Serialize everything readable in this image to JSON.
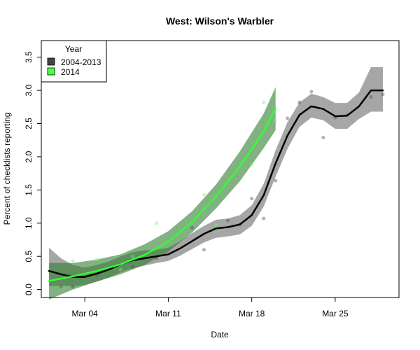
{
  "chart_data": {
    "type": "line",
    "title": "West: Wilson's Warbler",
    "xlabel": "Date",
    "ylabel": "Percent of checklists reporting",
    "x_ticks": [
      "Mar 04",
      "Mar 11",
      "Mar 18",
      "Mar 25"
    ],
    "y_ticks": [
      "0.0",
      "0.5",
      "1.0",
      "1.5",
      "2.0",
      "2.5",
      "3.0",
      "3.5"
    ],
    "xlim": [
      "Feb 28",
      "Mar 30"
    ],
    "ylim": [
      -0.12,
      3.75
    ],
    "legend": {
      "title": "Year",
      "position": "top-left",
      "entries": [
        {
          "label": "2004-2013",
          "color": "#444444"
        },
        {
          "label": "2014",
          "color": "#4CFF4C"
        }
      ]
    },
    "series": [
      {
        "name": "2004-2013",
        "color": "#000000",
        "band_color": "#000000",
        "x": [
          "Mar 01",
          "Mar 02",
          "Mar 03",
          "Mar 04",
          "Mar 05",
          "Mar 06",
          "Mar 07",
          "Mar 08",
          "Mar 09",
          "Mar 10",
          "Mar 11",
          "Mar 12",
          "Mar 13",
          "Mar 14",
          "Mar 15",
          "Mar 16",
          "Mar 17",
          "Mar 18",
          "Mar 19",
          "Mar 20",
          "Mar 21",
          "Mar 22",
          "Mar 23",
          "Mar 24",
          "Mar 25",
          "Mar 26",
          "Mar 27",
          "Mar 28",
          "Mar 29"
        ],
        "y": [
          0.28,
          0.23,
          0.19,
          0.19,
          0.24,
          0.3,
          0.38,
          0.44,
          0.47,
          0.5,
          0.53,
          0.62,
          0.73,
          0.84,
          0.92,
          0.94,
          0.98,
          1.12,
          1.42,
          1.9,
          2.32,
          2.63,
          2.76,
          2.72,
          2.61,
          2.62,
          2.76,
          3.0,
          3.0
        ],
        "lower": [
          0.05,
          0.06,
          0.05,
          0.07,
          0.12,
          0.18,
          0.26,
          0.32,
          0.36,
          0.4,
          0.43,
          0.51,
          0.61,
          0.71,
          0.78,
          0.8,
          0.83,
          0.96,
          1.25,
          1.7,
          2.12,
          2.45,
          2.59,
          2.55,
          2.42,
          2.42,
          2.57,
          2.68,
          2.68
        ],
        "upper": [
          0.63,
          0.47,
          0.37,
          0.33,
          0.37,
          0.42,
          0.5,
          0.56,
          0.59,
          0.6,
          0.63,
          0.73,
          0.85,
          0.96,
          1.05,
          1.07,
          1.12,
          1.27,
          1.59,
          2.1,
          2.52,
          2.82,
          2.95,
          2.9,
          2.81,
          2.81,
          2.97,
          3.35,
          3.35
        ],
        "points": [
          {
            "x": "Mar 02",
            "y": 0.05
          },
          {
            "x": "Mar 03",
            "y": 0.04
          },
          {
            "x": "Mar 05",
            "y": 0.22
          },
          {
            "x": "Mar 08",
            "y": 0.34
          },
          {
            "x": "Mar 10",
            "y": 0.47
          },
          {
            "x": "Mar 13",
            "y": 0.93
          },
          {
            "x": "Mar 14",
            "y": 0.6
          },
          {
            "x": "Mar 16",
            "y": 1.04
          },
          {
            "x": "Mar 17",
            "y": 0.98
          },
          {
            "x": "Mar 18",
            "y": 1.37
          },
          {
            "x": "Mar 19",
            "y": 1.07
          },
          {
            "x": "Mar 20",
            "y": 1.64
          },
          {
            "x": "Mar 21",
            "y": 2.58
          },
          {
            "x": "Mar 22",
            "y": 2.82
          },
          {
            "x": "Mar 23",
            "y": 2.98
          },
          {
            "x": "Mar 24",
            "y": 2.29
          },
          {
            "x": "Mar 25",
            "y": 2.59
          },
          {
            "x": "Mar 26",
            "y": 2.63
          },
          {
            "x": "Mar 28",
            "y": 2.9
          },
          {
            "x": "Mar 29",
            "y": 2.94
          }
        ]
      },
      {
        "name": "2014",
        "color": "#33FF33",
        "band_color": "#2E7D2E",
        "x": [
          "Mar 01",
          "Mar 03",
          "Mar 05",
          "Mar 07",
          "Mar 09",
          "Mar 11",
          "Mar 13",
          "Mar 15",
          "Mar 17",
          "Mar 19",
          "Mar 20"
        ],
        "y": [
          0.13,
          0.2,
          0.28,
          0.38,
          0.52,
          0.72,
          1.02,
          1.4,
          1.85,
          2.38,
          2.73
        ],
        "lower": [
          -0.15,
          0.0,
          0.12,
          0.23,
          0.37,
          0.57,
          0.86,
          1.22,
          1.63,
          2.13,
          2.4
        ],
        "upper": [
          0.4,
          0.4,
          0.45,
          0.53,
          0.68,
          0.88,
          1.18,
          1.58,
          2.08,
          2.65,
          3.05
        ],
        "points": [
          {
            "x": "Mar 01",
            "y": 0.28
          },
          {
            "x": "Mar 03",
            "y": 0.43
          },
          {
            "x": "Mar 05",
            "y": 0.45
          },
          {
            "x": "Mar 07",
            "y": 0.3
          },
          {
            "x": "Mar 08",
            "y": 0.5
          },
          {
            "x": "Mar 10",
            "y": 1.0
          },
          {
            "x": "Mar 14",
            "y": 1.43
          },
          {
            "x": "Mar 15",
            "y": 0.97
          },
          {
            "x": "Mar 18",
            "y": 1.88
          },
          {
            "x": "Mar 19",
            "y": 2.82
          },
          {
            "x": "Mar 20",
            "y": 2.55
          }
        ]
      }
    ]
  }
}
